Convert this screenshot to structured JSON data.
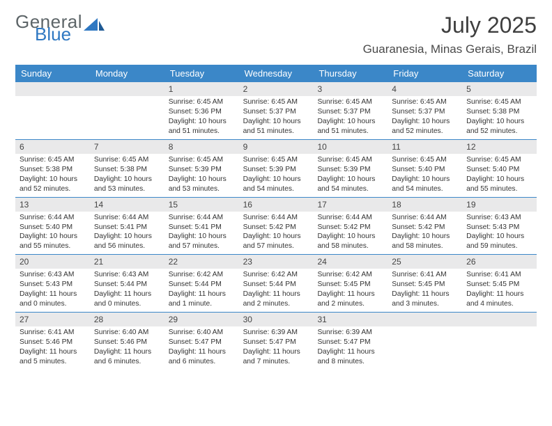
{
  "logo": {
    "general": "General",
    "blue": "Blue"
  },
  "title": "July 2025",
  "location": "Guaranesia, Minas Gerais, Brazil",
  "colors": {
    "header_bar": "#3b87c8",
    "day_num_bg": "#e9e9ea",
    "week_divider": "#3b87c8",
    "logo_blue": "#2f78c2",
    "logo_gray": "#5d6568"
  },
  "day_labels": [
    "Sunday",
    "Monday",
    "Tuesday",
    "Wednesday",
    "Thursday",
    "Friday",
    "Saturday"
  ],
  "weeks": [
    [
      {
        "n": "",
        "empty": true
      },
      {
        "n": "",
        "empty": true
      },
      {
        "n": "1",
        "sunrise": "Sunrise: 6:45 AM",
        "sunset": "Sunset: 5:36 PM",
        "d1": "Daylight: 10 hours",
        "d2": "and 51 minutes."
      },
      {
        "n": "2",
        "sunrise": "Sunrise: 6:45 AM",
        "sunset": "Sunset: 5:37 PM",
        "d1": "Daylight: 10 hours",
        "d2": "and 51 minutes."
      },
      {
        "n": "3",
        "sunrise": "Sunrise: 6:45 AM",
        "sunset": "Sunset: 5:37 PM",
        "d1": "Daylight: 10 hours",
        "d2": "and 51 minutes."
      },
      {
        "n": "4",
        "sunrise": "Sunrise: 6:45 AM",
        "sunset": "Sunset: 5:37 PM",
        "d1": "Daylight: 10 hours",
        "d2": "and 52 minutes."
      },
      {
        "n": "5",
        "sunrise": "Sunrise: 6:45 AM",
        "sunset": "Sunset: 5:38 PM",
        "d1": "Daylight: 10 hours",
        "d2": "and 52 minutes."
      }
    ],
    [
      {
        "n": "6",
        "sunrise": "Sunrise: 6:45 AM",
        "sunset": "Sunset: 5:38 PM",
        "d1": "Daylight: 10 hours",
        "d2": "and 52 minutes."
      },
      {
        "n": "7",
        "sunrise": "Sunrise: 6:45 AM",
        "sunset": "Sunset: 5:38 PM",
        "d1": "Daylight: 10 hours",
        "d2": "and 53 minutes."
      },
      {
        "n": "8",
        "sunrise": "Sunrise: 6:45 AM",
        "sunset": "Sunset: 5:39 PM",
        "d1": "Daylight: 10 hours",
        "d2": "and 53 minutes."
      },
      {
        "n": "9",
        "sunrise": "Sunrise: 6:45 AM",
        "sunset": "Sunset: 5:39 PM",
        "d1": "Daylight: 10 hours",
        "d2": "and 54 minutes."
      },
      {
        "n": "10",
        "sunrise": "Sunrise: 6:45 AM",
        "sunset": "Sunset: 5:39 PM",
        "d1": "Daylight: 10 hours",
        "d2": "and 54 minutes."
      },
      {
        "n": "11",
        "sunrise": "Sunrise: 6:45 AM",
        "sunset": "Sunset: 5:40 PM",
        "d1": "Daylight: 10 hours",
        "d2": "and 54 minutes."
      },
      {
        "n": "12",
        "sunrise": "Sunrise: 6:45 AM",
        "sunset": "Sunset: 5:40 PM",
        "d1": "Daylight: 10 hours",
        "d2": "and 55 minutes."
      }
    ],
    [
      {
        "n": "13",
        "sunrise": "Sunrise: 6:44 AM",
        "sunset": "Sunset: 5:40 PM",
        "d1": "Daylight: 10 hours",
        "d2": "and 55 minutes."
      },
      {
        "n": "14",
        "sunrise": "Sunrise: 6:44 AM",
        "sunset": "Sunset: 5:41 PM",
        "d1": "Daylight: 10 hours",
        "d2": "and 56 minutes."
      },
      {
        "n": "15",
        "sunrise": "Sunrise: 6:44 AM",
        "sunset": "Sunset: 5:41 PM",
        "d1": "Daylight: 10 hours",
        "d2": "and 57 minutes."
      },
      {
        "n": "16",
        "sunrise": "Sunrise: 6:44 AM",
        "sunset": "Sunset: 5:42 PM",
        "d1": "Daylight: 10 hours",
        "d2": "and 57 minutes."
      },
      {
        "n": "17",
        "sunrise": "Sunrise: 6:44 AM",
        "sunset": "Sunset: 5:42 PM",
        "d1": "Daylight: 10 hours",
        "d2": "and 58 minutes."
      },
      {
        "n": "18",
        "sunrise": "Sunrise: 6:44 AM",
        "sunset": "Sunset: 5:42 PM",
        "d1": "Daylight: 10 hours",
        "d2": "and 58 minutes."
      },
      {
        "n": "19",
        "sunrise": "Sunrise: 6:43 AM",
        "sunset": "Sunset: 5:43 PM",
        "d1": "Daylight: 10 hours",
        "d2": "and 59 minutes."
      }
    ],
    [
      {
        "n": "20",
        "sunrise": "Sunrise: 6:43 AM",
        "sunset": "Sunset: 5:43 PM",
        "d1": "Daylight: 11 hours",
        "d2": "and 0 minutes."
      },
      {
        "n": "21",
        "sunrise": "Sunrise: 6:43 AM",
        "sunset": "Sunset: 5:44 PM",
        "d1": "Daylight: 11 hours",
        "d2": "and 0 minutes."
      },
      {
        "n": "22",
        "sunrise": "Sunrise: 6:42 AM",
        "sunset": "Sunset: 5:44 PM",
        "d1": "Daylight: 11 hours",
        "d2": "and 1 minute."
      },
      {
        "n": "23",
        "sunrise": "Sunrise: 6:42 AM",
        "sunset": "Sunset: 5:44 PM",
        "d1": "Daylight: 11 hours",
        "d2": "and 2 minutes."
      },
      {
        "n": "24",
        "sunrise": "Sunrise: 6:42 AM",
        "sunset": "Sunset: 5:45 PM",
        "d1": "Daylight: 11 hours",
        "d2": "and 2 minutes."
      },
      {
        "n": "25",
        "sunrise": "Sunrise: 6:41 AM",
        "sunset": "Sunset: 5:45 PM",
        "d1": "Daylight: 11 hours",
        "d2": "and 3 minutes."
      },
      {
        "n": "26",
        "sunrise": "Sunrise: 6:41 AM",
        "sunset": "Sunset: 5:45 PM",
        "d1": "Daylight: 11 hours",
        "d2": "and 4 minutes."
      }
    ],
    [
      {
        "n": "27",
        "sunrise": "Sunrise: 6:41 AM",
        "sunset": "Sunset: 5:46 PM",
        "d1": "Daylight: 11 hours",
        "d2": "and 5 minutes."
      },
      {
        "n": "28",
        "sunrise": "Sunrise: 6:40 AM",
        "sunset": "Sunset: 5:46 PM",
        "d1": "Daylight: 11 hours",
        "d2": "and 6 minutes."
      },
      {
        "n": "29",
        "sunrise": "Sunrise: 6:40 AM",
        "sunset": "Sunset: 5:47 PM",
        "d1": "Daylight: 11 hours",
        "d2": "and 6 minutes."
      },
      {
        "n": "30",
        "sunrise": "Sunrise: 6:39 AM",
        "sunset": "Sunset: 5:47 PM",
        "d1": "Daylight: 11 hours",
        "d2": "and 7 minutes."
      },
      {
        "n": "31",
        "sunrise": "Sunrise: 6:39 AM",
        "sunset": "Sunset: 5:47 PM",
        "d1": "Daylight: 11 hours",
        "d2": "and 8 minutes."
      },
      {
        "n": "",
        "empty": true
      },
      {
        "n": "",
        "empty": true
      }
    ]
  ]
}
